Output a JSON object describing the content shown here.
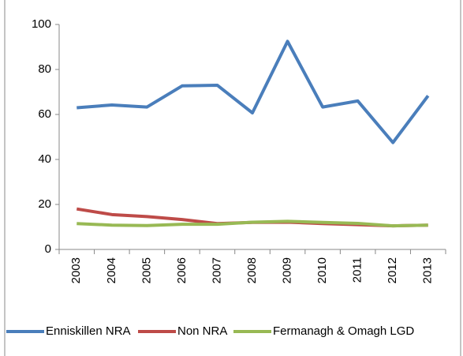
{
  "chart_data": {
    "type": "line",
    "categories": [
      "2003",
      "2004",
      "2005",
      "2006",
      "2007",
      "2008",
      "2009",
      "2010",
      "2011",
      "2012",
      "2013"
    ],
    "series": [
      {
        "name": "Enniskillen NRA",
        "color": "#4a7ebb",
        "values": [
          63,
          64.2,
          63.3,
          72.7,
          73,
          60.7,
          92.5,
          63.3,
          66,
          47.5,
          68.3
        ]
      },
      {
        "name": "Non NRA",
        "color": "#be4b48",
        "values": [
          18,
          15.5,
          14.6,
          13.3,
          11.5,
          12,
          12.1,
          11.5,
          11,
          10.5,
          10.8
        ]
      },
      {
        "name": "Fermanagh & Omagh LGD",
        "color": "#98b954",
        "values": [
          11.5,
          10.8,
          10.6,
          11.2,
          11.2,
          12.1,
          12.5,
          12,
          11.6,
          10.5,
          10.8
        ]
      }
    ],
    "ylim": [
      0,
      100
    ],
    "yticks": [
      0,
      20,
      40,
      60,
      80,
      100
    ],
    "grid": false,
    "legend": "bottom"
  }
}
